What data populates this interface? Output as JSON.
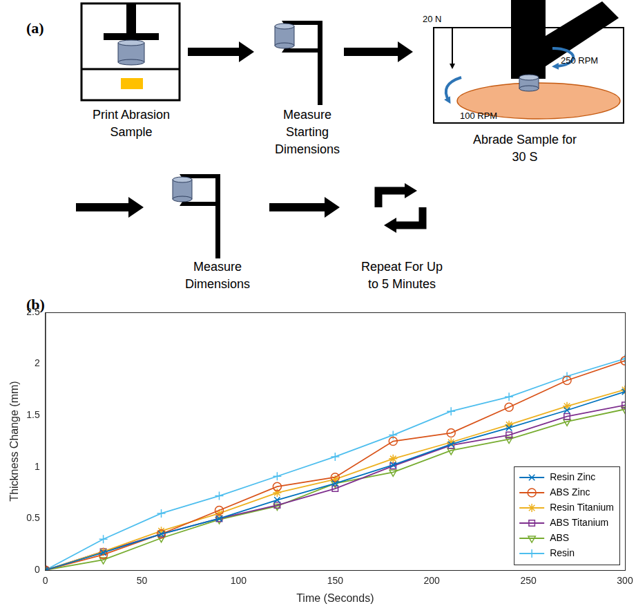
{
  "diagram": {
    "label": "(a)",
    "steps": [
      "Print Abrasion Sample",
      "Measure Starting Dimensions",
      "Abrade Sample for 30 S",
      "Measure Dimensions",
      "Repeat For Up to 5 Minutes"
    ],
    "annotations": {
      "force": "20 N",
      "head_speed": "250 RPM",
      "platen_speed": "100 RPM"
    }
  },
  "chart_data": {
    "panel_label": "(b)",
    "type": "line",
    "x_label": "Time (Seconds)",
    "y_label": "Thickness Change (mm)",
    "x": [
      0,
      30,
      60,
      90,
      120,
      150,
      180,
      210,
      240,
      270,
      300
    ],
    "series": [
      {
        "name": "Resin Zinc",
        "color": "#0072bd",
        "marker": "x",
        "values": [
          0,
          0.17,
          0.35,
          0.5,
          0.68,
          0.84,
          1.02,
          1.22,
          1.38,
          1.55,
          1.73
        ]
      },
      {
        "name": "ABS Zinc",
        "color": "#d95319",
        "marker": "o",
        "values": [
          0,
          0.15,
          0.35,
          0.58,
          0.81,
          0.9,
          1.25,
          1.33,
          1.58,
          1.84,
          2.03
        ]
      },
      {
        "name": "Resin Titanium",
        "color": "#edb120",
        "marker": "*",
        "values": [
          0,
          0.18,
          0.38,
          0.55,
          0.75,
          0.88,
          1.08,
          1.24,
          1.41,
          1.59,
          1.75
        ]
      },
      {
        "name": "ABS Titanium",
        "color": "#7e2f8e",
        "marker": "square",
        "values": [
          0,
          0.18,
          0.35,
          0.5,
          0.63,
          0.79,
          1.01,
          1.21,
          1.31,
          1.49,
          1.6
        ]
      },
      {
        "name": "ABS",
        "color": "#77ac30",
        "marker": "v",
        "values": [
          0,
          0.1,
          0.31,
          0.49,
          0.62,
          0.84,
          0.95,
          1.16,
          1.27,
          1.44,
          1.56
        ]
      },
      {
        "name": "Resin",
        "color": "#4dbeee",
        "marker": "+",
        "values": [
          0,
          0.3,
          0.55,
          0.72,
          0.91,
          1.1,
          1.31,
          1.54,
          1.68,
          1.88,
          2.05
        ]
      }
    ],
    "xlim": [
      0,
      300
    ],
    "xticks": [
      0,
      50,
      100,
      150,
      200,
      250,
      300
    ],
    "ylim": [
      0,
      2.5
    ],
    "yticks": [
      0,
      0.5,
      1,
      1.5,
      2,
      2.5
    ],
    "grid": false,
    "legend": "lower right"
  }
}
